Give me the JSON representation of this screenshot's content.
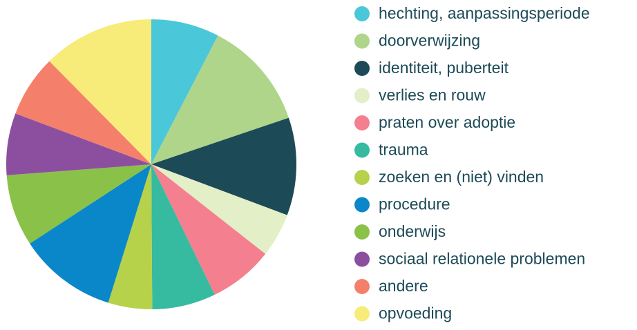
{
  "chart_data": {
    "type": "pie",
    "categories": [
      "hechting, aanpassingsperiode",
      "doorverwijzing",
      "identiteit, puberteit",
      "verlies en rouw",
      "praten over adoptie",
      "trauma",
      "zoeken en (niet) vinden",
      "procedure",
      "onderwijs",
      "sociaal relationele problemen",
      "andere",
      "opvoeding"
    ],
    "values": [
      7.6,
      12.2,
      10.9,
      4.9,
      7.2,
      7.1,
      4.9,
      11,
      8,
      6.9,
      6.9,
      12.4
    ],
    "colors": [
      "#4ac7d9",
      "#aed58a",
      "#1c4a57",
      "#e3efc6",
      "#f47f8f",
      "#36bba0",
      "#b5d24a",
      "#0a87c9",
      "#8ac149",
      "#8c4fa0",
      "#f4806c",
      "#f7eb7a"
    ],
    "legend": "right"
  }
}
